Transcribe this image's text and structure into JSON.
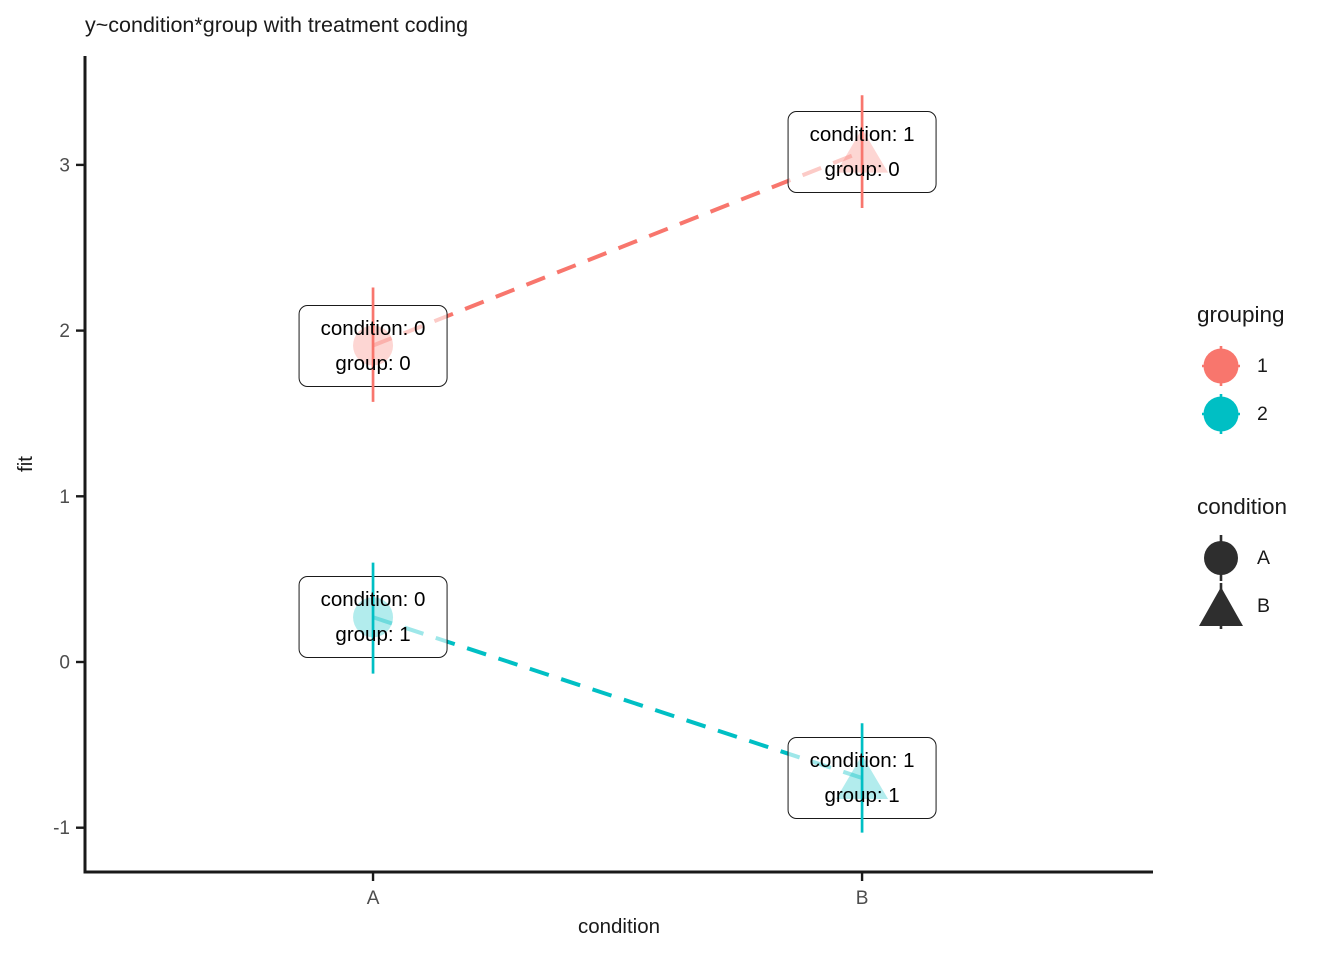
{
  "chart_data": {
    "type": "line",
    "title": "y~condition*group with treatment coding",
    "xlabel": "condition",
    "ylabel": "fit",
    "categories": [
      "A",
      "B"
    ],
    "yticks": [
      3,
      2,
      1,
      0,
      -1
    ],
    "ylim": [
      -1.27,
      3.66
    ],
    "grid": "off",
    "line_style": "dashed",
    "point_fill_alpha": 0.3,
    "series": [
      {
        "name": "1",
        "color": "#F8766D",
        "points": [
          {
            "x": "A",
            "shape": "circle",
            "fit": 1.91,
            "ci": [
              1.57,
              2.26
            ],
            "label_lines": [
              "condition: 0",
              "group: 0"
            ]
          },
          {
            "x": "B",
            "shape": "triangle",
            "fit": 3.08,
            "ci": [
              2.74,
              3.42
            ],
            "label_lines": [
              "condition: 1",
              "group: 0"
            ]
          }
        ]
      },
      {
        "name": "2",
        "color": "#00BFC4",
        "points": [
          {
            "x": "A",
            "shape": "circle",
            "fit": 0.27,
            "ci": [
              -0.07,
              0.6
            ],
            "label_lines": [
              "condition: 0",
              "group: 1"
            ]
          },
          {
            "x": "B",
            "shape": "triangle",
            "fit": -0.7,
            "ci": [
              -1.03,
              -0.37
            ],
            "label_lines": [
              "condition: 1",
              "group: 1"
            ]
          }
        ]
      }
    ],
    "legends": [
      {
        "title": "grouping",
        "entries": [
          {
            "label": "1",
            "color": "#F8766D",
            "glyph": "circle-with-cross-lines"
          },
          {
            "label": "2",
            "color": "#00BFC4",
            "glyph": "circle-with-cross-lines"
          }
        ]
      },
      {
        "title": "condition",
        "entries": [
          {
            "label": "A",
            "color": "#2e2e2e",
            "glyph": "circle"
          },
          {
            "label": "B",
            "color": "#2e2e2e",
            "glyph": "triangle"
          }
        ]
      }
    ],
    "colors": {
      "axis_line": "#1a1a1a",
      "axis_text": "#4d4d4d",
      "label_box_border": "#1a1a1a",
      "background": "#ffffff"
    }
  }
}
